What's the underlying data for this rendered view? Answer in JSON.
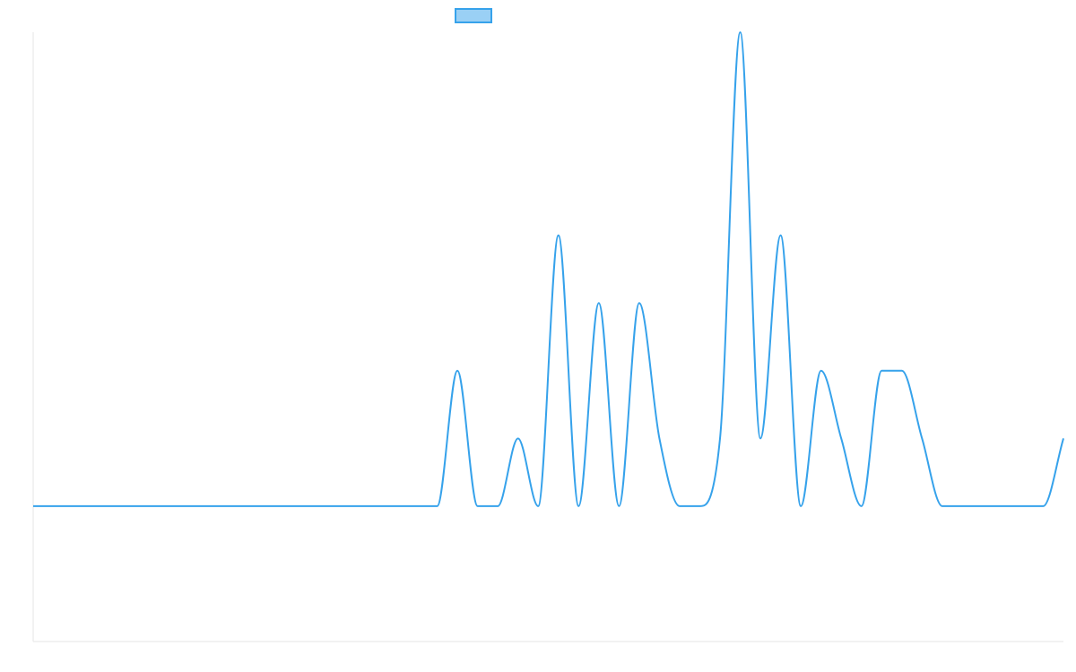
{
  "chart_data": {
    "type": "line",
    "title": "",
    "xlabel": "",
    "ylabel": "",
    "x": [
      0,
      1,
      2,
      3,
      4,
      5,
      6,
      7,
      8,
      9,
      10,
      11,
      12,
      13,
      14,
      15,
      16,
      17,
      18,
      19,
      20,
      21,
      22,
      23,
      24,
      25,
      26,
      27,
      28,
      29,
      30,
      31,
      32,
      33,
      34,
      35,
      36,
      37,
      38,
      39,
      40,
      41,
      42,
      43,
      44,
      45,
      46,
      47,
      48,
      49,
      50,
      51
    ],
    "series": [
      {
        "name": "",
        "color": "#36a2eb",
        "fill": "#9ad0f5",
        "values": [
          0,
          0,
          0,
          0,
          0,
          0,
          0,
          0,
          0,
          0,
          0,
          0,
          0,
          0,
          0,
          0,
          0,
          0,
          0,
          0,
          0,
          2,
          0,
          0,
          1,
          0,
          4,
          0,
          3,
          0,
          3,
          1,
          0,
          0,
          1,
          7,
          1,
          4,
          0,
          2,
          1,
          0,
          2,
          2,
          1,
          0,
          0,
          0,
          0,
          0,
          0,
          1
        ]
      }
    ],
    "ylim": [
      -2,
      7
    ],
    "grid": false,
    "legend": "top-center"
  }
}
